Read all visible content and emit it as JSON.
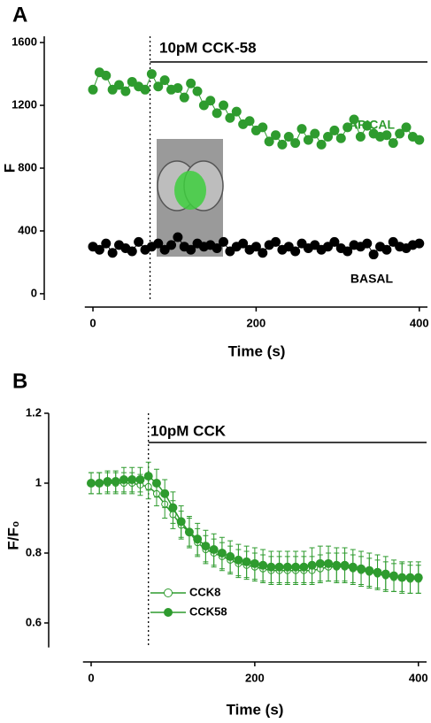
{
  "chart_data": [
    {
      "type": "line",
      "panel_label": "A",
      "annotation": "10pM CCK-58",
      "stimulus_x": 70,
      "x_label": "Time (s)",
      "y_label": "F",
      "xlim": [
        -10,
        410
      ],
      "xticks": [
        0,
        200,
        400
      ],
      "ylim": [
        -40,
        1640
      ],
      "yticks": [
        0,
        400,
        800,
        1200,
        1600
      ],
      "x": [
        0,
        8,
        16,
        24,
        32,
        40,
        48,
        56,
        64,
        72,
        80,
        88,
        96,
        104,
        112,
        120,
        128,
        136,
        144,
        152,
        160,
        168,
        176,
        184,
        192,
        200,
        208,
        216,
        224,
        232,
        240,
        248,
        256,
        264,
        272,
        280,
        288,
        296,
        304,
        312,
        320,
        328,
        336,
        344,
        352,
        360,
        368,
        376,
        384,
        392,
        400
      ],
      "series": [
        {
          "name": "APICAL",
          "color": "#2e9b2e",
          "values": [
            1300,
            1410,
            1390,
            1300,
            1330,
            1290,
            1350,
            1320,
            1300,
            1400,
            1320,
            1360,
            1300,
            1310,
            1250,
            1340,
            1290,
            1200,
            1230,
            1150,
            1200,
            1120,
            1160,
            1080,
            1100,
            1040,
            1060,
            970,
            1010,
            950,
            1000,
            960,
            1050,
            980,
            1020,
            950,
            1000,
            1040,
            990,
            1060,
            1110,
            1000,
            1070,
            1020,
            1000,
            1010,
            960,
            1020,
            1060,
            1000,
            980
          ]
        },
        {
          "name": "BASAL",
          "color": "#000000",
          "values": [
            300,
            280,
            320,
            260,
            310,
            290,
            270,
            330,
            280,
            300,
            320,
            280,
            310,
            360,
            300,
            280,
            320,
            300,
            310,
            290,
            330,
            270,
            300,
            320,
            280,
            300,
            260,
            310,
            330,
            280,
            300,
            270,
            320,
            290,
            310,
            280,
            300,
            330,
            290,
            270,
            310,
            300,
            320,
            250,
            300,
            280,
            330,
            300,
            290,
            310,
            320
          ]
        }
      ]
    },
    {
      "type": "errorbar",
      "panel_label": "B",
      "annotation": "10pM CCK",
      "stimulus_x": 70,
      "x_label": "Time (s)",
      "y_label": "F/F₀",
      "xlim": [
        -10,
        410
      ],
      "xticks": [
        0,
        200,
        400
      ],
      "ylim": [
        0.53,
        1.2
      ],
      "yticks": [
        0.6,
        0.8,
        1.0,
        1.2
      ],
      "x": [
        0,
        10,
        20,
        30,
        40,
        50,
        60,
        70,
        80,
        90,
        100,
        110,
        120,
        130,
        140,
        150,
        160,
        170,
        180,
        190,
        200,
        210,
        220,
        230,
        240,
        250,
        260,
        270,
        280,
        290,
        300,
        310,
        320,
        330,
        340,
        350,
        360,
        370,
        380,
        390,
        400
      ],
      "series": [
        {
          "name": "CCK8",
          "color": "#2e9b2e",
          "marker": "open",
          "values": [
            1.0,
            1.0,
            1.0,
            1.0,
            1.0,
            1.0,
            0.995,
            0.99,
            0.97,
            0.94,
            0.91,
            0.88,
            0.86,
            0.83,
            0.81,
            0.8,
            0.79,
            0.78,
            0.77,
            0.765,
            0.76,
            0.755,
            0.75,
            0.75,
            0.75,
            0.75,
            0.75,
            0.75,
            0.755,
            0.76,
            0.76,
            0.76,
            0.755,
            0.75,
            0.745,
            0.74,
            0.735,
            0.73,
            0.73,
            0.725,
            0.725
          ],
          "errors": [
            0.03,
            0.03,
            0.03,
            0.03,
            0.03,
            0.03,
            0.03,
            0.035,
            0.035,
            0.04,
            0.04,
            0.04,
            0.04,
            0.04,
            0.04,
            0.04,
            0.04,
            0.04,
            0.04,
            0.04,
            0.04,
            0.04,
            0.04,
            0.04,
            0.04,
            0.04,
            0.04,
            0.04,
            0.04,
            0.04,
            0.04,
            0.04,
            0.04,
            0.04,
            0.04,
            0.04,
            0.04,
            0.04,
            0.04,
            0.04,
            0.04
          ]
        },
        {
          "name": "CCK58",
          "color": "#2e9b2e",
          "marker": "filled",
          "values": [
            1.0,
            1.0,
            1.005,
            1.005,
            1.01,
            1.01,
            1.01,
            1.02,
            1.0,
            0.97,
            0.93,
            0.89,
            0.86,
            0.84,
            0.82,
            0.81,
            0.8,
            0.79,
            0.78,
            0.775,
            0.77,
            0.765,
            0.76,
            0.76,
            0.76,
            0.76,
            0.76,
            0.765,
            0.77,
            0.77,
            0.765,
            0.765,
            0.76,
            0.755,
            0.75,
            0.745,
            0.74,
            0.735,
            0.73,
            0.73,
            0.73
          ],
          "errors": [
            0.03,
            0.03,
            0.03,
            0.03,
            0.035,
            0.035,
            0.035,
            0.04,
            0.04,
            0.04,
            0.045,
            0.045,
            0.045,
            0.045,
            0.045,
            0.045,
            0.045,
            0.045,
            0.045,
            0.045,
            0.045,
            0.045,
            0.045,
            0.045,
            0.045,
            0.045,
            0.045,
            0.05,
            0.05,
            0.05,
            0.05,
            0.05,
            0.05,
            0.05,
            0.05,
            0.05,
            0.05,
            0.045,
            0.045,
            0.045,
            0.045
          ]
        }
      ]
    }
  ]
}
